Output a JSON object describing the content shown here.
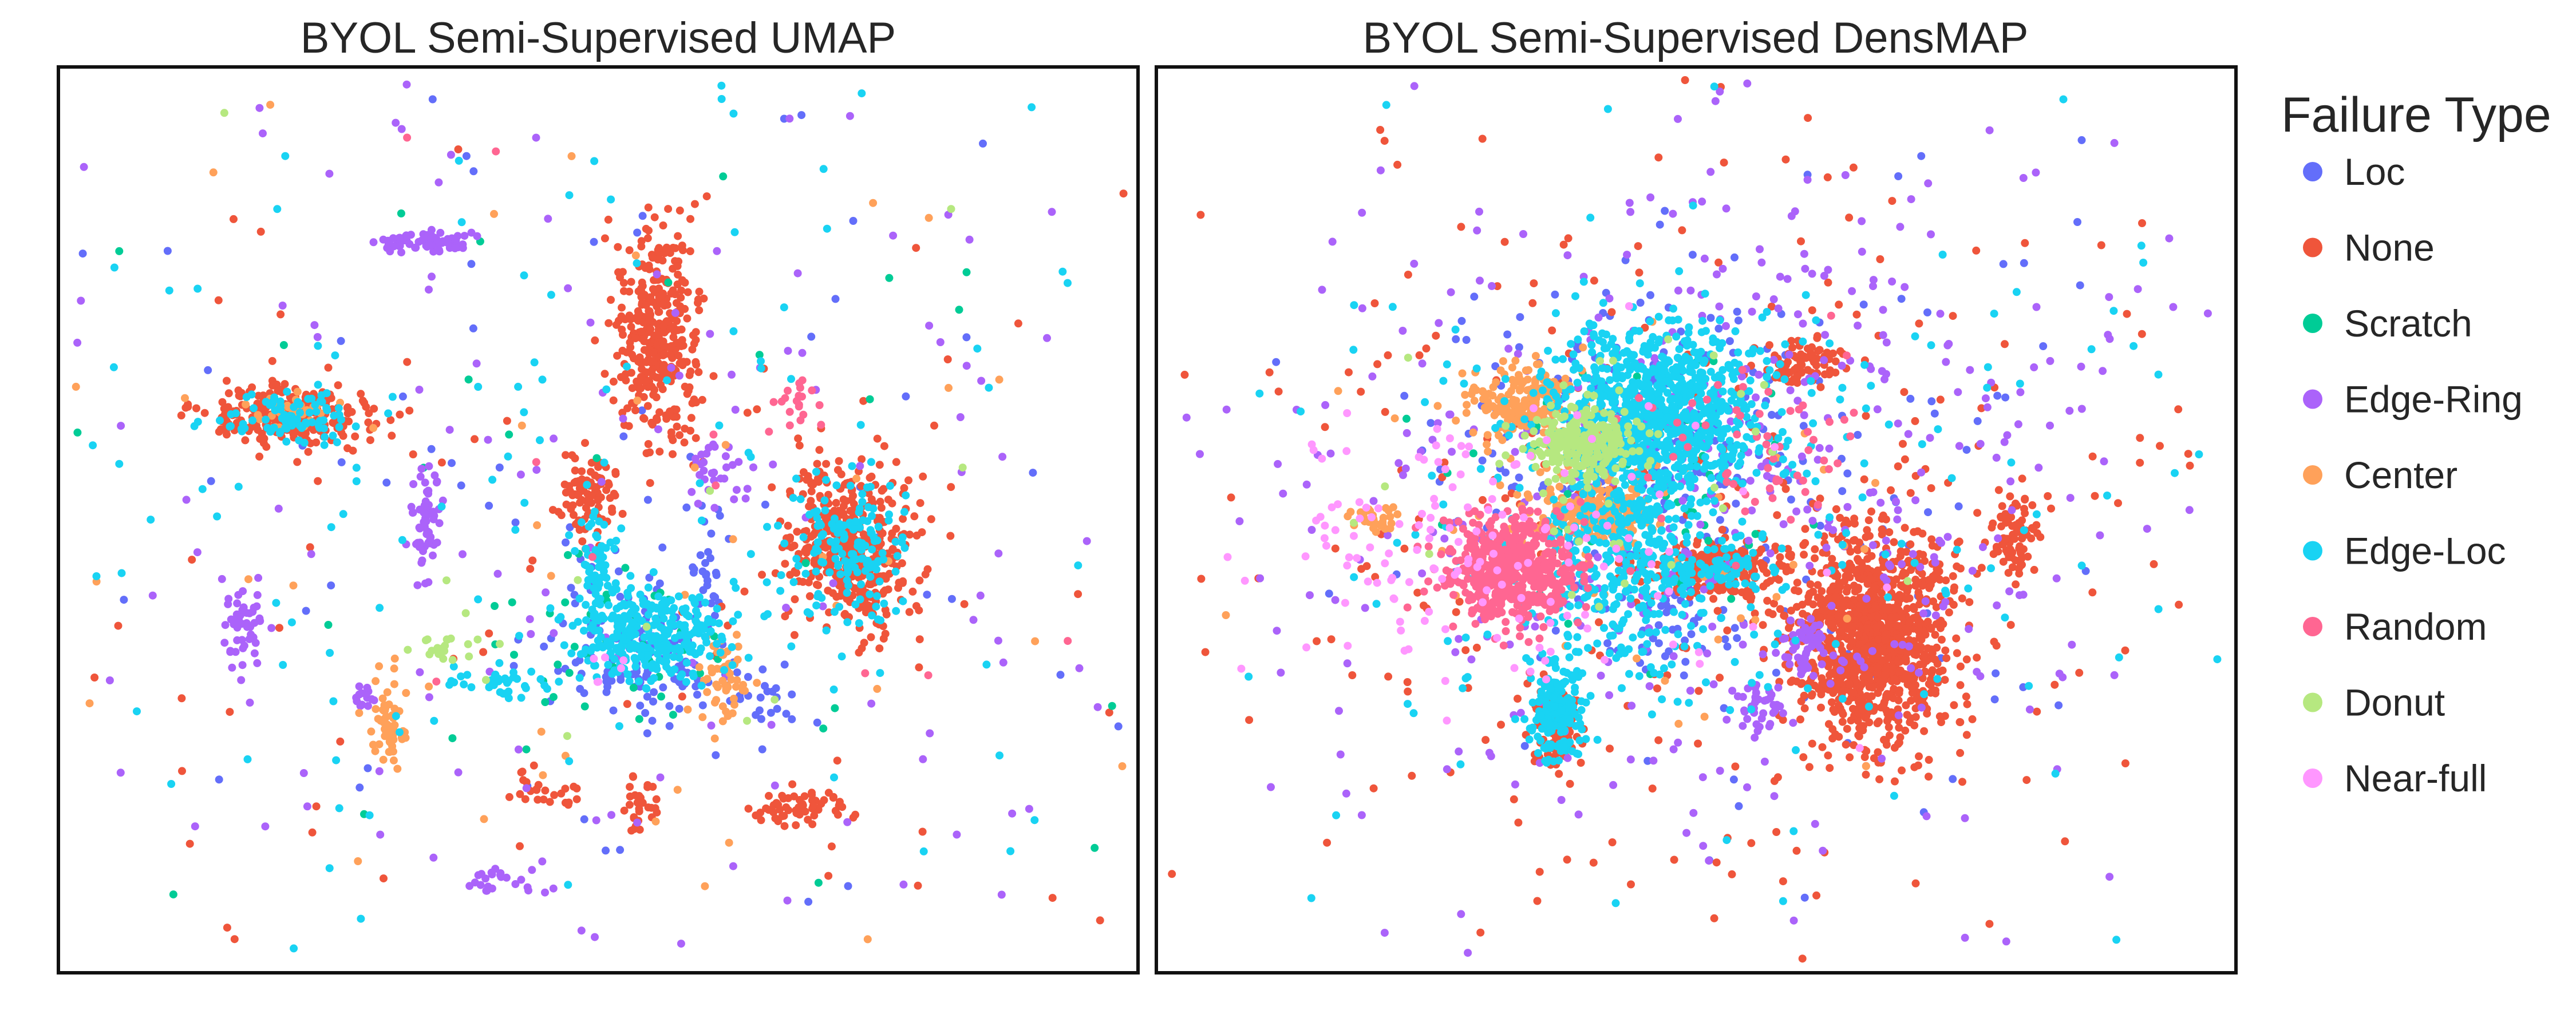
{
  "chart_data": [
    {
      "type": "scatter",
      "title": "BYOL Semi-Supervised UMAP",
      "xlabel": "",
      "ylabel": "",
      "xlim": [
        0,
        100
      ],
      "ylim": [
        0,
        100
      ],
      "grid": false,
      "series": [
        {
          "name": "Loc",
          "color": "#636efa",
          "clusters": [
            {
              "cx": 56,
              "cy": 34,
              "sx": 3,
              "sy": 4,
              "n": 80
            },
            {
              "cx": 51,
              "cy": 39,
              "sx": 4,
              "sy": 5,
              "n": 60
            },
            {
              "cx": 60,
              "cy": 44,
              "sx": 1,
              "sy": 5,
              "n": 30
            },
            {
              "cx": 65,
              "cy": 30,
              "sx": 2,
              "sy": 2,
              "n": 25
            },
            {
              "cx": 50,
              "cy": 50,
              "sx": 35,
              "sy": 32,
              "n": 80
            }
          ]
        },
        {
          "name": "None",
          "color": "#ef553b",
          "clusters": [
            {
              "cx": 55.5,
              "cy": 70,
              "sx": 2,
              "sy": 6,
              "n": 360
            },
            {
              "cx": 73.5,
              "cy": 47,
              "sx": 3,
              "sy": 4.5,
              "n": 450
            },
            {
              "cx": 21.5,
              "cy": 61.5,
              "sx": 4,
              "sy": 1.8,
              "n": 260
            },
            {
              "cx": 49,
              "cy": 52.5,
              "sx": 1.4,
              "sy": 2.2,
              "n": 90
            },
            {
              "cx": 69,
              "cy": 18,
              "sx": 2,
              "sy": 0.9,
              "n": 60
            },
            {
              "cx": 54,
              "cy": 18.5,
              "sx": 1,
              "sy": 1.5,
              "n": 30
            },
            {
              "cx": 45,
              "cy": 20,
              "sx": 1.5,
              "sy": 1,
              "n": 25
            },
            {
              "cx": 50,
              "cy": 50,
              "sx": 35,
              "sy": 34,
              "n": 100
            }
          ]
        },
        {
          "name": "Scratch",
          "color": "#00cc96",
          "clusters": [
            {
              "cx": 52,
              "cy": 37,
              "sx": 5,
              "sy": 5,
              "n": 40
            },
            {
              "cx": 50,
              "cy": 50,
              "sx": 30,
              "sy": 30,
              "n": 40
            }
          ]
        },
        {
          "name": "Edge-Ring",
          "color": "#ab63fa",
          "clusters": [
            {
              "cx": 34,
              "cy": 81,
              "sx": 2.5,
              "sy": 0.6,
              "n": 70
            },
            {
              "cx": 34,
              "cy": 49.5,
              "sx": 0.7,
              "sy": 3,
              "n": 60
            },
            {
              "cx": 17,
              "cy": 38,
              "sx": 1,
              "sy": 2.5,
              "n": 50
            },
            {
              "cx": 28,
              "cy": 30,
              "sx": 1,
              "sy": 1,
              "n": 15
            },
            {
              "cx": 61,
              "cy": 56,
              "sx": 1.5,
              "sy": 2,
              "n": 30
            },
            {
              "cx": 42,
              "cy": 10,
              "sx": 3,
              "sy": 1,
              "n": 25
            },
            {
              "cx": 50,
              "cy": 50,
              "sx": 36,
              "sy": 34,
              "n": 180
            }
          ]
        },
        {
          "name": "Center",
          "color": "#ffa15a",
          "clusters": [
            {
              "cx": 30.5,
              "cy": 27,
              "sx": 0.8,
              "sy": 2.5,
              "n": 60
            },
            {
              "cx": 61.5,
              "cy": 32,
              "sx": 1,
              "sy": 2.5,
              "n": 50
            },
            {
              "cx": 21,
              "cy": 62.5,
              "sx": 2,
              "sy": 1,
              "n": 40
            },
            {
              "cx": 50,
              "cy": 50,
              "sx": 34,
              "sy": 32,
              "n": 60
            }
          ]
        },
        {
          "name": "Edge-Loc",
          "color": "#19d3f3",
          "clusters": [
            {
              "cx": 55,
              "cy": 37,
              "sx": 3.5,
              "sy": 2.5,
              "n": 300
            },
            {
              "cx": 50,
              "cy": 45,
              "sx": 0.8,
              "sy": 4,
              "n": 60
            },
            {
              "cx": 73.5,
              "cy": 47,
              "sx": 2.5,
              "sy": 3.8,
              "n": 150
            },
            {
              "cx": 21.5,
              "cy": 61.5,
              "sx": 3.5,
              "sy": 1.5,
              "n": 90
            },
            {
              "cx": 40.5,
              "cy": 32,
              "sx": 3,
              "sy": 1,
              "n": 40
            },
            {
              "cx": 50,
              "cy": 50,
              "sx": 32,
              "sy": 32,
              "n": 160
            }
          ]
        },
        {
          "name": "Random",
          "color": "#ff6692",
          "clusters": [
            {
              "cx": 68,
              "cy": 63,
              "sx": 1.5,
              "sy": 1.5,
              "n": 20
            },
            {
              "cx": 50,
              "cy": 50,
              "sx": 25,
              "sy": 25,
              "n": 10
            }
          ]
        },
        {
          "name": "Donut",
          "color": "#b6e880",
          "clusters": [
            {
              "cx": 35.5,
              "cy": 36,
              "sx": 2,
              "sy": 0.8,
              "n": 20
            },
            {
              "cx": 50,
              "cy": 50,
              "sx": 30,
              "sy": 30,
              "n": 15
            }
          ]
        },
        {
          "name": "Near-full",
          "color": "#ff97ff",
          "clusters": [
            {
              "cx": 51,
              "cy": 33,
              "sx": 1,
              "sy": 1,
              "n": 6
            }
          ]
        }
      ]
    },
    {
      "type": "scatter",
      "title": "BYOL Semi-Supervised DensMAP",
      "xlabel": "",
      "ylabel": "",
      "xlim": [
        0,
        100
      ],
      "ylim": [
        0,
        100
      ],
      "grid": false,
      "series": [
        {
          "name": "Loc",
          "color": "#636efa",
          "clusters": [
            {
              "cx": 44,
              "cy": 60,
              "sx": 8,
              "sy": 7,
              "n": 220
            },
            {
              "cx": 45,
              "cy": 40,
              "sx": 4,
              "sy": 4,
              "n": 60
            },
            {
              "cx": 55,
              "cy": 50,
              "sx": 18,
              "sy": 18,
              "n": 100
            }
          ]
        },
        {
          "name": "None",
          "color": "#ef553b",
          "clusters": [
            {
              "cx": 66.5,
              "cy": 37,
              "sx": 3.5,
              "sy": 6,
              "n": 1100
            },
            {
              "cx": 52,
              "cy": 44.5,
              "sx": 3.2,
              "sy": 1.5,
              "n": 220
            },
            {
              "cx": 37,
              "cy": 27.5,
              "sx": 1,
              "sy": 2.5,
              "n": 150
            },
            {
              "cx": 60,
              "cy": 67.5,
              "sx": 2,
              "sy": 1.2,
              "n": 80
            },
            {
              "cx": 80,
              "cy": 48.5,
              "sx": 1,
              "sy": 2.5,
              "n": 80
            },
            {
              "cx": 50,
              "cy": 50,
              "sx": 26,
              "sy": 24,
              "n": 320
            }
          ]
        },
        {
          "name": "Scratch",
          "color": "#00cc96",
          "clusters": [
            {
              "cx": 45,
              "cy": 55,
              "sx": 8,
              "sy": 8,
              "n": 50
            }
          ]
        },
        {
          "name": "Edge-Ring",
          "color": "#ab63fa",
          "clusters": [
            {
              "cx": 50,
              "cy": 55,
              "sx": 20,
              "sy": 20,
              "n": 480
            },
            {
              "cx": 60,
              "cy": 36,
              "sx": 1.2,
              "sy": 1.5,
              "n": 50
            },
            {
              "cx": 56,
              "cy": 29,
              "sx": 1.2,
              "sy": 1.2,
              "n": 40
            }
          ]
        },
        {
          "name": "Center",
          "color": "#ffa15a",
          "clusters": [
            {
              "cx": 34,
              "cy": 63,
              "sx": 2.5,
              "sy": 2,
              "n": 200
            },
            {
              "cx": 40,
              "cy": 51,
              "sx": 3,
              "sy": 2,
              "n": 200
            },
            {
              "cx": 20,
              "cy": 50,
              "sx": 1.5,
              "sy": 0.8,
              "n": 30
            },
            {
              "cx": 45,
              "cy": 50,
              "sx": 12,
              "sy": 12,
              "n": 60
            }
          ]
        },
        {
          "name": "Edge-Loc",
          "color": "#19d3f3",
          "clusters": [
            {
              "cx": 46,
              "cy": 61,
              "sx": 5,
              "sy": 5,
              "n": 900
            },
            {
              "cx": 43,
              "cy": 46,
              "sx": 4,
              "sy": 5,
              "n": 300
            },
            {
              "cx": 37,
              "cy": 29,
              "sx": 1.3,
              "sy": 3,
              "n": 180
            },
            {
              "cx": 52,
              "cy": 44.5,
              "sx": 3,
              "sy": 1.3,
              "n": 80
            },
            {
              "cx": 50,
              "cy": 50,
              "sx": 20,
              "sy": 20,
              "n": 220
            }
          ]
        },
        {
          "name": "Random",
          "color": "#ff6692",
          "clusters": [
            {
              "cx": 33,
              "cy": 44.5,
              "sx": 3,
              "sy": 2.8,
              "n": 550
            },
            {
              "cx": 55,
              "cy": 58,
              "sx": 5,
              "sy": 5,
              "n": 60
            }
          ]
        },
        {
          "name": "Donut",
          "color": "#b6e880",
          "clusters": [
            {
              "cx": 39.5,
              "cy": 58.5,
              "sx": 2.5,
              "sy": 2,
              "n": 250
            },
            {
              "cx": 44,
              "cy": 55,
              "sx": 10,
              "sy": 10,
              "n": 40
            }
          ]
        },
        {
          "name": "Near-full",
          "color": "#ff97ff",
          "clusters": [
            {
              "cx": 28,
              "cy": 47,
              "sx": 8,
              "sy": 8,
              "n": 110
            },
            {
              "cx": 30,
              "cy": 50,
              "sx": 14,
              "sy": 12,
              "n": 40
            }
          ]
        }
      ]
    }
  ],
  "legend": {
    "title": "Failure Type",
    "placement": "right",
    "items": [
      {
        "label": "Loc",
        "color": "#636efa"
      },
      {
        "label": "None",
        "color": "#ef553b"
      },
      {
        "label": "Scratch",
        "color": "#00cc96"
      },
      {
        "label": "Edge-Ring",
        "color": "#ab63fa"
      },
      {
        "label": "Center",
        "color": "#ffa15a"
      },
      {
        "label": "Edge-Loc",
        "color": "#19d3f3"
      },
      {
        "label": "Random",
        "color": "#ff6692"
      },
      {
        "label": "Donut",
        "color": "#b6e880"
      },
      {
        "label": "Near-full",
        "color": "#ff97ff"
      }
    ]
  }
}
